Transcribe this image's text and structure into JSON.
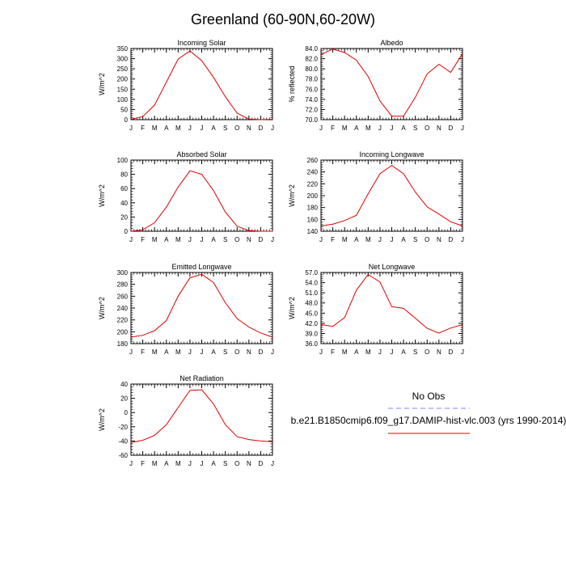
{
  "figure": {
    "title": "Greenland (60-90N,60-20W)",
    "legend": {
      "entries": [
        {
          "label": "No Obs",
          "color": "#8080ff",
          "dashed": true
        },
        {
          "label": "b.e21.B1850cmip6.f09_g17.DAMIP-hist-vlc.003 (yrs 1990-2014)",
          "color": "#e00000",
          "dashed": false
        }
      ]
    }
  },
  "chart_data": [
    {
      "type": "line",
      "title": "Incoming Solar",
      "ylabel": "W/m^2",
      "x": [
        "J",
        "F",
        "M",
        "A",
        "M",
        "J",
        "J",
        "A",
        "S",
        "O",
        "N",
        "D",
        "J"
      ],
      "ylim": [
        0,
        350
      ],
      "yticks": [
        "0",
        "50",
        "100",
        "150",
        "200",
        "250",
        "300",
        "350"
      ],
      "series": [
        {
          "values": [
            2,
            15,
            72,
            185,
            298,
            338,
            290,
            208,
            113,
            32,
            3,
            0,
            2
          ],
          "color": "#e00000"
        }
      ]
    },
    {
      "type": "line",
      "title": "Albedo",
      "ylabel": "% reflected",
      "x": [
        "J",
        "F",
        "M",
        "A",
        "M",
        "J",
        "J",
        "A",
        "S",
        "O",
        "N",
        "D",
        "J"
      ],
      "ylim": [
        70,
        84
      ],
      "yticks": [
        "70.0",
        "72.0",
        "74.0",
        "76.0",
        "78.0",
        "80.0",
        "82.0",
        "84.0"
      ],
      "series": [
        {
          "values": [
            82.8,
            83.9,
            83.2,
            81.7,
            78.5,
            73.7,
            70.7,
            70.7,
            74.4,
            79.0,
            80.9,
            79.3,
            83.0
          ],
          "color": "#e00000"
        }
      ]
    },
    {
      "type": "line",
      "title": "Absorbed Solar",
      "ylabel": "W/m^2",
      "x": [
        "J",
        "F",
        "M",
        "A",
        "M",
        "J",
        "J",
        "A",
        "S",
        "O",
        "N",
        "D",
        "J"
      ],
      "ylim": [
        0,
        100
      ],
      "yticks": [
        "0",
        "20",
        "40",
        "60",
        "80",
        "100"
      ],
      "series": [
        {
          "values": [
            0,
            2,
            12,
            34,
            62,
            85,
            80,
            57,
            27,
            7,
            1,
            0,
            0
          ],
          "color": "#e00000"
        }
      ]
    },
    {
      "type": "line",
      "title": "Incoming Longwave",
      "ylabel": "W/m^2",
      "x": [
        "J",
        "F",
        "M",
        "A",
        "M",
        "J",
        "J",
        "A",
        "S",
        "O",
        "N",
        "D",
        "J"
      ],
      "ylim": [
        140,
        260
      ],
      "yticks": [
        "140",
        "160",
        "180",
        "200",
        "220",
        "240",
        "260"
      ],
      "series": [
        {
          "values": [
            149,
            152,
            158,
            167,
            203,
            237,
            251,
            237,
            206,
            181,
            169,
            156,
            149
          ],
          "color": "#e00000"
        }
      ]
    },
    {
      "type": "line",
      "title": "Emitted Longwave",
      "ylabel": "W/m^2",
      "x": [
        "J",
        "F",
        "M",
        "A",
        "M",
        "J",
        "J",
        "A",
        "S",
        "O",
        "N",
        "D",
        "J"
      ],
      "ylim": [
        180,
        300
      ],
      "yticks": [
        "180",
        "200",
        "220",
        "240",
        "260",
        "280",
        "300"
      ],
      "series": [
        {
          "values": [
            191,
            194,
            202,
            219,
            260,
            291,
            297,
            283,
            249,
            222,
            208,
            198,
            191
          ],
          "color": "#e00000"
        }
      ]
    },
    {
      "type": "line",
      "title": "Net Longwave",
      "ylabel": "W/m^2",
      "x": [
        "J",
        "F",
        "M",
        "A",
        "M",
        "J",
        "J",
        "A",
        "S",
        "O",
        "N",
        "D",
        "J"
      ],
      "ylim": [
        36,
        57
      ],
      "yticks": [
        "36.0",
        "39.0",
        "42.0",
        "45.0",
        "48.0",
        "51.0",
        "54.0",
        "57.0"
      ],
      "series": [
        {
          "values": [
            41.6,
            41.1,
            43.7,
            51.8,
            56.4,
            54.2,
            46.9,
            46.4,
            43.5,
            40.5,
            39.1,
            40.6,
            41.6
          ],
          "color": "#e00000"
        }
      ]
    },
    {
      "type": "line",
      "title": "Net Radiation",
      "ylabel": "W/m^2",
      "x": [
        "J",
        "F",
        "M",
        "A",
        "M",
        "J",
        "J",
        "A",
        "S",
        "O",
        "N",
        "D",
        "J"
      ],
      "ylim": [
        -60,
        40
      ],
      "yticks": [
        "-60",
        "-40",
        "-20",
        "0",
        "20",
        "40"
      ],
      "series": [
        {
          "values": [
            -42,
            -39,
            -32,
            -17,
            7,
            31,
            32,
            12,
            -17,
            -34,
            -38,
            -40,
            -41
          ],
          "color": "#e00000"
        }
      ]
    }
  ]
}
